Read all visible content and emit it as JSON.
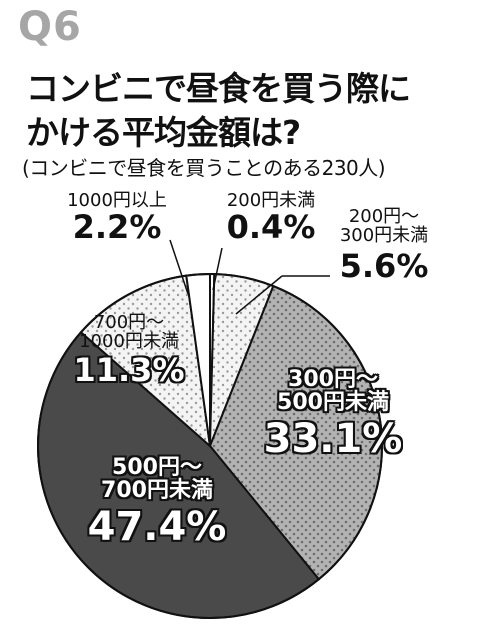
{
  "header": {
    "question_label": "Q6",
    "title_line1": "コンビニで昼食を買う際に",
    "title_line2": "かける平均金額は?",
    "subtitle": "(コンビニで昼食を買うことのある230人)"
  },
  "chart_data": {
    "type": "pie",
    "title": "コンビニで昼食を買う際にかける平均金額は?",
    "subtitle": "(コンビニで昼食を買うことのある230人)",
    "start": "12 o'clock, clockwise",
    "slices": [
      {
        "label": "200円未満",
        "label_lines": [
          "200円未満"
        ],
        "value": 0.4,
        "value_text": "0.4%",
        "fill": "#ffffff",
        "pattern": "none"
      },
      {
        "label": "200円〜300円未満",
        "label_lines": [
          "200円〜",
          "300円未満"
        ],
        "value": 5.6,
        "value_text": "5.6%",
        "fill": "#f2f2f2",
        "pattern": "dots-light"
      },
      {
        "label": "300円〜500円未満",
        "label_lines": [
          "300円〜",
          "500円未満"
        ],
        "value": 33.1,
        "value_text": "33.1%",
        "fill": "#a9a9a9",
        "pattern": "dots-dark"
      },
      {
        "label": "500円〜700円未満",
        "label_lines": [
          "500円〜",
          "700円未満"
        ],
        "value": 47.4,
        "value_text": "47.4%",
        "fill": "#4a4a4a",
        "pattern": "none"
      },
      {
        "label": "700円〜1000円未満",
        "label_lines": [
          "700円〜",
          "1000円未満"
        ],
        "value": 11.3,
        "value_text": "11.3%",
        "fill": "#f2f2f2",
        "pattern": "dots-light"
      },
      {
        "label": "1000円以上",
        "label_lines": [
          "1000円以上"
        ],
        "value": 2.2,
        "value_text": "2.2%",
        "fill": "#ffffff",
        "pattern": "none"
      }
    ]
  }
}
